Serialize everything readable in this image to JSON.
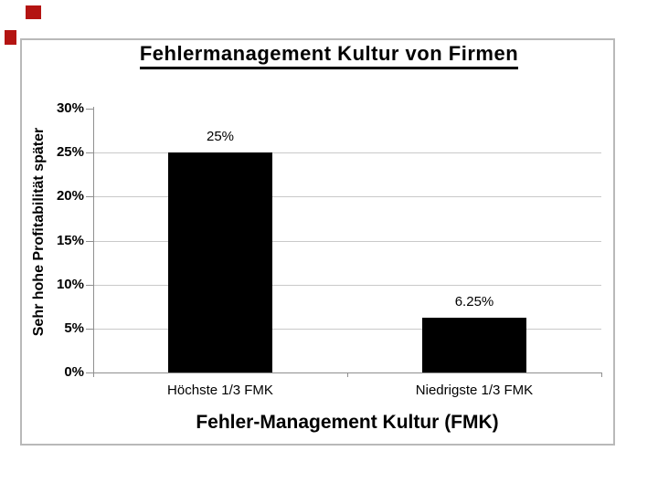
{
  "slide": {
    "background": "#ffffff",
    "decorations": [
      {
        "name": "red-square-top",
        "color": "#b41412"
      },
      {
        "name": "red-square-left",
        "color": "#b41412"
      }
    ]
  },
  "chart": {
    "title": "Fehlermanagement Kultur von Firmen",
    "panel_border_color": "#b9b9b9",
    "axis_color": "#8f8f8f",
    "gridline_color": "#c9c9c9",
    "bar_color": "#000000",
    "text_color": "#000000"
  },
  "chart_data": {
    "type": "bar",
    "title": "Fehlermanagement Kultur von Firmen",
    "categories": [
      "Höchste 1/3 FMK",
      "Niedrigste 1/3 FMK"
    ],
    "values": [
      25,
      6.25
    ],
    "value_labels": [
      "25%",
      "6.25%"
    ],
    "xlabel": "Fehler-Management Kultur (FMK)",
    "ylabel": "Sehr hohe Profitabilität später",
    "ylim": [
      0,
      30
    ],
    "ytick_step": 5,
    "ytick_labels": [
      "0%",
      "5%",
      "10%",
      "15%",
      "20%",
      "25%",
      "30%"
    ],
    "grid": true,
    "legend": false,
    "bar_color": "#000000"
  }
}
